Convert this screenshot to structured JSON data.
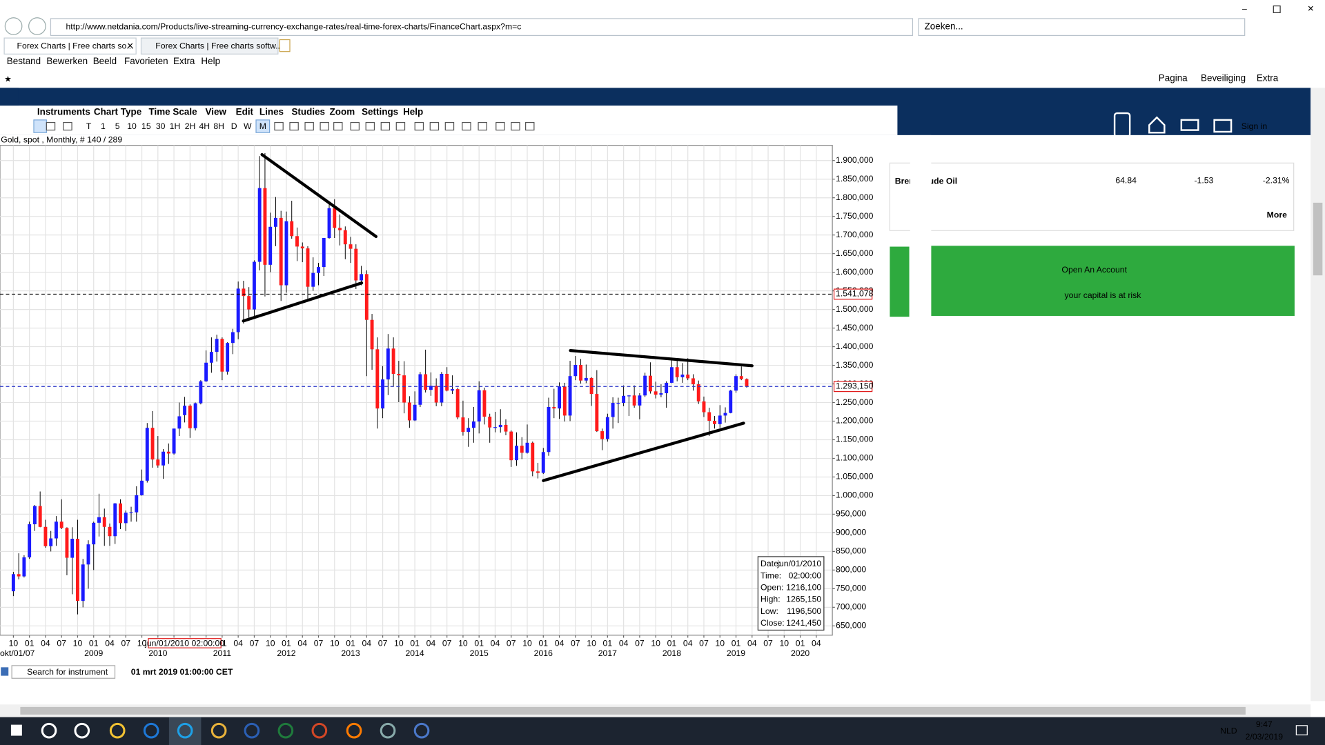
{
  "browser": {
    "url": "http://www.netdania.com/Products/live-streaming-currency-exchange-rates/real-time-forex-charts/FinanceChart.aspx?m=c",
    "search_placeholder": "Zoeken...",
    "tabs": [
      "Forex Charts | Free charts so...",
      "Forex Charts | Free charts softw..."
    ],
    "menu": [
      "Bestand",
      "Bewerken",
      "Beeld",
      "Favorieten",
      "Extra",
      "Help"
    ],
    "command_bar": [
      "Pagina",
      "Beveiliging",
      "Extra"
    ]
  },
  "chart_window": {
    "menu": [
      "Instruments",
      "Chart Type",
      "Time Scale",
      "View",
      "Edit",
      "Lines",
      "Studies",
      "Zoom",
      "Settings",
      "Help"
    ],
    "timeframes": [
      "T",
      "1",
      "5",
      "10",
      "15",
      "30",
      "1H",
      "2H",
      "4H",
      "8H",
      "D",
      "W",
      "M"
    ],
    "search_placeholder": "Search for instrument",
    "status_time": "01 mrt 2019 01:00:00 CET",
    "tooltip": [
      [
        "Date:",
        "jun/01/2010"
      ],
      [
        "Time:",
        "02:00:00"
      ],
      [
        "Open:",
        "1216,100"
      ],
      [
        "High:",
        "1265,150"
      ],
      [
        "Low:",
        "1196,500"
      ],
      [
        "Close:",
        "1241,450"
      ]
    ]
  },
  "chart_data": {
    "type": "candlestick",
    "title": "Gold, spot , Monthly, # 140 / 289",
    "up_color": "#1a1aff",
    "down_color": "#ff1a1a",
    "grid": true,
    "ohlc": [
      [
        743,
        795,
        730,
        789
      ],
      [
        789,
        845,
        775,
        783
      ],
      [
        783,
        840,
        780,
        834
      ],
      [
        834,
        930,
        830,
        923
      ],
      [
        923,
        975,
        905,
        972
      ],
      [
        972,
        1011,
        915,
        916
      ],
      [
        916,
        935,
        860,
        864
      ],
      [
        864,
        905,
        850,
        885
      ],
      [
        885,
        945,
        865,
        930
      ],
      [
        930,
        990,
        910,
        913
      ],
      [
        913,
        915,
        786,
        833
      ],
      [
        833,
        915,
        735,
        884
      ],
      [
        884,
        935,
        681,
        717
      ],
      [
        717,
        830,
        700,
        815
      ],
      [
        815,
        880,
        750,
        869
      ],
      [
        869,
        930,
        800,
        927
      ],
      [
        927,
        1005,
        890,
        942
      ],
      [
        942,
        965,
        865,
        916
      ],
      [
        916,
        925,
        865,
        891
      ],
      [
        891,
        980,
        870,
        979
      ],
      [
        979,
        990,
        910,
        926
      ],
      [
        926,
        960,
        905,
        954
      ],
      [
        954,
        970,
        930,
        955
      ],
      [
        955,
        1025,
        930,
        1001
      ],
      [
        1001,
        1070,
        1000,
        1040
      ],
      [
        1040,
        1195,
        1035,
        1182
      ],
      [
        1182,
        1227,
        1075,
        1097
      ],
      [
        1097,
        1160,
        1075,
        1081
      ],
      [
        1081,
        1125,
        1045,
        1118
      ],
      [
        1118,
        1140,
        1085,
        1113
      ],
      [
        1113,
        1180,
        1110,
        1180
      ],
      [
        1180,
        1250,
        1160,
        1213
      ],
      [
        1216.1,
        1265.15,
        1196.5,
        1241.45
      ],
      [
        1241.45,
        1245,
        1155,
        1181
      ],
      [
        1181,
        1250,
        1175,
        1248
      ],
      [
        1248,
        1310,
        1245,
        1307
      ],
      [
        1307,
        1390,
        1305,
        1357
      ],
      [
        1357,
        1425,
        1330,
        1386
      ],
      [
        1386,
        1432,
        1360,
        1421
      ],
      [
        1421,
        1425,
        1310,
        1333
      ],
      [
        1333,
        1412,
        1325,
        1410
      ],
      [
        1410,
        1448,
        1380,
        1439
      ],
      [
        1439,
        1575,
        1420,
        1556
      ],
      [
        1556,
        1577,
        1462,
        1536
      ],
      [
        1536,
        1560,
        1478,
        1500
      ],
      [
        1500,
        1632,
        1480,
        1628
      ],
      [
        1628,
        1912,
        1605,
        1826
      ],
      [
        1826,
        1920,
        1535,
        1620
      ],
      [
        1620,
        1760,
        1600,
        1722
      ],
      [
        1722,
        1802,
        1670,
        1746
      ],
      [
        1746,
        1765,
        1523,
        1565
      ],
      [
        1565,
        1763,
        1545,
        1737
      ],
      [
        1737,
        1792,
        1690,
        1697
      ],
      [
        1697,
        1720,
        1630,
        1669
      ],
      [
        1669,
        1680,
        1627,
        1664
      ],
      [
        1664,
        1670,
        1527,
        1561
      ],
      [
        1561,
        1640,
        1550,
        1598
      ],
      [
        1598,
        1625,
        1565,
        1614
      ],
      [
        1614,
        1692,
        1590,
        1692
      ],
      [
        1692,
        1790,
        1690,
        1772
      ],
      [
        1772,
        1796,
        1692,
        1719
      ],
      [
        1719,
        1755,
        1672,
        1713
      ],
      [
        1713,
        1723,
        1635,
        1675
      ],
      [
        1675,
        1695,
        1625,
        1663
      ],
      [
        1663,
        1675,
        1555,
        1578
      ],
      [
        1578,
        1617,
        1565,
        1595
      ],
      [
        1595,
        1605,
        1321,
        1472
      ],
      [
        1472,
        1488,
        1338,
        1393
      ],
      [
        1393,
        1425,
        1180,
        1234
      ],
      [
        1234,
        1348,
        1208,
        1312
      ],
      [
        1312,
        1434,
        1270,
        1395
      ],
      [
        1395,
        1425,
        1292,
        1327
      ],
      [
        1327,
        1362,
        1251,
        1323
      ],
      [
        1323,
        1361,
        1221,
        1250
      ],
      [
        1250,
        1267,
        1182,
        1202
      ],
      [
        1202,
        1280,
        1200,
        1244
      ],
      [
        1244,
        1332,
        1238,
        1326
      ],
      [
        1326,
        1392,
        1277,
        1284
      ],
      [
        1284,
        1331,
        1268,
        1295
      ],
      [
        1295,
        1315,
        1240,
        1250
      ],
      [
        1250,
        1332,
        1240,
        1327
      ],
      [
        1327,
        1345,
        1280,
        1282
      ],
      [
        1282,
        1323,
        1273,
        1286
      ],
      [
        1286,
        1290,
        1205,
        1210
      ],
      [
        1210,
        1255,
        1161,
        1171
      ],
      [
        1171,
        1208,
        1131,
        1182
      ],
      [
        1182,
        1238,
        1142,
        1199
      ],
      [
        1199,
        1307,
        1167,
        1283
      ],
      [
        1283,
        1290,
        1191,
        1212
      ],
      [
        1212,
        1220,
        1142,
        1183
      ],
      [
        1183,
        1225,
        1170,
        1184
      ],
      [
        1184,
        1232,
        1169,
        1190
      ],
      [
        1190,
        1205,
        1162,
        1172
      ],
      [
        1172,
        1175,
        1077,
        1095
      ],
      [
        1095,
        1170,
        1080,
        1134
      ],
      [
        1134,
        1157,
        1098,
        1115
      ],
      [
        1115,
        1191,
        1113,
        1142
      ],
      [
        1142,
        1145,
        1052,
        1065
      ],
      [
        1065,
        1088,
        1046,
        1061
      ],
      [
        1061,
        1128,
        1058,
        1117
      ],
      [
        1117,
        1263,
        1107,
        1238
      ],
      [
        1238,
        1287,
        1208,
        1234
      ],
      [
        1234,
        1304,
        1206,
        1293
      ],
      [
        1293,
        1303,
        1199,
        1215
      ],
      [
        1215,
        1362,
        1200,
        1321
      ],
      [
        1321,
        1375,
        1310,
        1351
      ],
      [
        1351,
        1367,
        1301,
        1309
      ],
      [
        1309,
        1352,
        1302,
        1316
      ],
      [
        1316,
        1318,
        1241,
        1273
      ],
      [
        1273,
        1337,
        1171,
        1173
      ],
      [
        1173,
        1180,
        1122,
        1152
      ],
      [
        1152,
        1220,
        1145,
        1211
      ],
      [
        1211,
        1264,
        1180,
        1249
      ],
      [
        1249,
        1263,
        1195,
        1249
      ],
      [
        1249,
        1296,
        1240,
        1268
      ],
      [
        1268,
        1270,
        1214,
        1269
      ],
      [
        1269,
        1296,
        1236,
        1242
      ],
      [
        1242,
        1275,
        1205,
        1269
      ],
      [
        1269,
        1330,
        1265,
        1322
      ],
      [
        1322,
        1358,
        1274,
        1280
      ],
      [
        1280,
        1306,
        1261,
        1271
      ],
      [
        1271,
        1299,
        1264,
        1275
      ],
      [
        1275,
        1307,
        1236,
        1303
      ],
      [
        1303,
        1366,
        1302,
        1345
      ],
      [
        1345,
        1362,
        1307,
        1318
      ],
      [
        1318,
        1356,
        1303,
        1325
      ],
      [
        1325,
        1369,
        1310,
        1315
      ],
      [
        1315,
        1326,
        1282,
        1299
      ],
      [
        1299,
        1309,
        1246,
        1253
      ],
      [
        1253,
        1266,
        1211,
        1224
      ],
      [
        1224,
        1236,
        1160,
        1201
      ],
      [
        1201,
        1214,
        1180,
        1192
      ],
      [
        1192,
        1243,
        1182,
        1215
      ],
      [
        1215,
        1237,
        1196,
        1222
      ],
      [
        1222,
        1284,
        1221,
        1282
      ],
      [
        1282,
        1326,
        1276,
        1321
      ],
      [
        1321,
        1347,
        1310,
        1313
      ],
      [
        1313,
        1315,
        1290,
        1293.15
      ]
    ],
    "ylim": [
      625,
      1941
    ],
    "xlim": [
      -2.5,
      153
    ],
    "yticks": [
      {
        "value": 650,
        "label": "650,000"
      },
      {
        "value": 700,
        "label": "700,000"
      },
      {
        "value": 750,
        "label": "750,000"
      },
      {
        "value": 800,
        "label": "800,000"
      },
      {
        "value": 850,
        "label": "850,000"
      },
      {
        "value": 900,
        "label": "900,000"
      },
      {
        "value": 950,
        "label": "950,000"
      },
      {
        "value": 1000,
        "label": "1.000,000"
      },
      {
        "value": 1050,
        "label": "1.050,000"
      },
      {
        "value": 1100,
        "label": "1.100,000"
      },
      {
        "value": 1150,
        "label": "1.150,000"
      },
      {
        "value": 1200,
        "label": "1.200,000"
      },
      {
        "value": 1250,
        "label": "1.250,000"
      },
      {
        "value": 1300,
        "label": "1.300,000"
      },
      {
        "value": 1350,
        "label": "1.350,000"
      },
      {
        "value": 1400,
        "label": "1.400,000"
      },
      {
        "value": 1450,
        "label": "1.450,000"
      },
      {
        "value": 1500,
        "label": "1.500,000"
      },
      {
        "value": 1550,
        "label": "1.550,000"
      },
      {
        "value": 1600,
        "label": "1.600,000"
      },
      {
        "value": 1650,
        "label": "1.650,000"
      },
      {
        "value": 1700,
        "label": "1.700,000"
      },
      {
        "value": 1750,
        "label": "1.750,000"
      },
      {
        "value": 1800,
        "label": "1.800,000"
      },
      {
        "value": 1850,
        "label": "1.850,000"
      },
      {
        "value": 1900,
        "label": "1.900,000"
      }
    ],
    "xticks": [
      {
        "value": 0,
        "label": "10"
      },
      {
        "value": 3,
        "label": "01"
      },
      {
        "value": 6,
        "label": "04"
      },
      {
        "value": 9,
        "label": "07"
      },
      {
        "value": 12,
        "label": "10"
      },
      {
        "value": 15,
        "label": "01"
      },
      {
        "value": 18,
        "label": "04"
      },
      {
        "value": 21,
        "label": "07"
      },
      {
        "value": 24,
        "label": "10"
      },
      {
        "value": 27,
        "label": "01"
      },
      {
        "value": 30,
        "label": "04"
      },
      {
        "value": 33,
        "label": "07"
      },
      {
        "value": 36,
        "label": "10"
      },
      {
        "value": 39,
        "label": "01"
      },
      {
        "value": 42,
        "label": "04"
      },
      {
        "value": 45,
        "label": "07"
      },
      {
        "value": 48,
        "label": "10"
      },
      {
        "value": 51,
        "label": "01"
      },
      {
        "value": 54,
        "label": "04"
      },
      {
        "value": 57,
        "label": "07"
      },
      {
        "value": 60,
        "label": "10"
      },
      {
        "value": 63,
        "label": "01"
      },
      {
        "value": 66,
        "label": "04"
      },
      {
        "value": 69,
        "label": "07"
      },
      {
        "value": 72,
        "label": "10"
      },
      {
        "value": 75,
        "label": "01"
      },
      {
        "value": 78,
        "label": "04"
      },
      {
        "value": 81,
        "label": "07"
      },
      {
        "value": 84,
        "label": "10"
      },
      {
        "value": 87,
        "label": "01"
      },
      {
        "value": 90,
        "label": "04"
      },
      {
        "value": 93,
        "label": "07"
      },
      {
        "value": 96,
        "label": "10"
      },
      {
        "value": 99,
        "label": "01"
      },
      {
        "value": 102,
        "label": "04"
      },
      {
        "value": 105,
        "label": "07"
      },
      {
        "value": 108,
        "label": "10"
      },
      {
        "value": 111,
        "label": "01"
      },
      {
        "value": 114,
        "label": "04"
      },
      {
        "value": 117,
        "label": "07"
      },
      {
        "value": 120,
        "label": "10"
      },
      {
        "value": 123,
        "label": "01"
      },
      {
        "value": 126,
        "label": "04"
      },
      {
        "value": 129,
        "label": "07"
      },
      {
        "value": 132,
        "label": "10"
      },
      {
        "value": 135,
        "label": "01"
      },
      {
        "value": 138,
        "label": "04"
      },
      {
        "value": 141,
        "label": "07"
      },
      {
        "value": 144,
        "label": "10"
      },
      {
        "value": 147,
        "label": "01"
      },
      {
        "value": 150,
        "label": "04"
      }
    ],
    "year_labels": [
      {
        "value": 0,
        "label": "okt/01/07"
      },
      {
        "value": 15,
        "label": "2009"
      },
      {
        "value": 27,
        "label": "2010"
      },
      {
        "value": 39,
        "label": "2011"
      },
      {
        "value": 51,
        "label": "2012"
      },
      {
        "value": 63,
        "label": "2013"
      },
      {
        "value": 75,
        "label": "2014"
      },
      {
        "value": 87,
        "label": "2015"
      },
      {
        "value": 99,
        "label": "2016"
      },
      {
        "value": 111,
        "label": "2017"
      },
      {
        "value": 123,
        "label": "2018"
      },
      {
        "value": 135,
        "label": "2019"
      },
      {
        "value": 147,
        "label": "2020"
      }
    ],
    "crosshair": {
      "value": 32,
      "label": "jun/01/2010 02:00:00"
    },
    "price_lines": [
      {
        "value": 1541.078,
        "label": "1.541,078",
        "color": "#000000"
      },
      {
        "value": 1293.15,
        "label": "1.293,150",
        "color": "#2a35c8"
      }
    ]
  },
  "site": {
    "sign_in": "Sign in",
    "quote": {
      "name": "Brent Crude Oil",
      "last": "64.84",
      "change": "-1.53",
      "percent": "-2.31%"
    },
    "more": "More",
    "cta": {
      "title": "Open An Account",
      "subtitle": "your capital is at risk"
    }
  },
  "taskbar": {
    "language": "NLD",
    "time": "9:47",
    "date": "2/03/2019"
  }
}
